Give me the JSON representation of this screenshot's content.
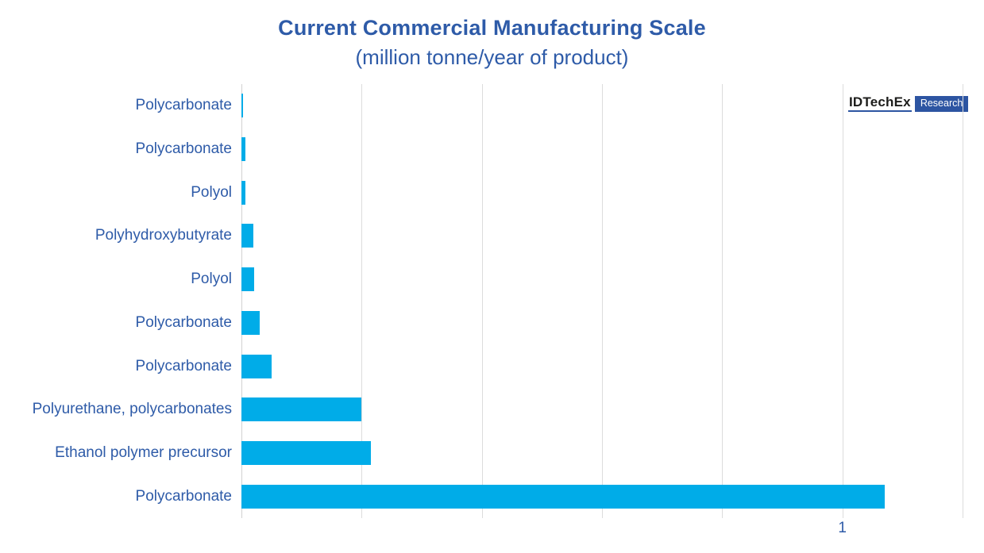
{
  "header": {
    "title": "Current Commercial Manufacturing Scale",
    "subtitle": "(million tonne/year of product)"
  },
  "logo": {
    "brand": "IDTechEx",
    "suffix": "Research"
  },
  "colors": {
    "bar": "#00ace8",
    "blue": "#2e5ba8",
    "grid": "#dcdcdc",
    "axis": "#d2d2d2",
    "logobox": "#2d55a2",
    "logotext": "#1d1d1b"
  },
  "x_axis": {
    "tick_label": "1",
    "tick_value": 1.0
  },
  "chart_data": {
    "type": "bar",
    "orientation": "horizontal",
    "title": "Current Commercial Manufacturing Scale",
    "subtitle": "(million tonne/year of product)",
    "categories": [
      "Polycarbonate",
      "Polycarbonate",
      "Polyol",
      "Polyhydroxybutyrate",
      "Polyol",
      "Polycarbonate",
      "Polycarbonate",
      "Polyurethane, polycarbonates",
      "Ethanol polymer precursor",
      "Polycarbonate"
    ],
    "values": [
      0.003,
      0.006,
      0.006,
      0.02,
      0.021,
      0.03,
      0.05,
      0.2,
      0.215,
      1.07
    ],
    "xlabel": "",
    "ylabel": "",
    "xlim": [
      0,
      1.2
    ],
    "x_ticks": [
      0,
      0.2,
      0.4,
      0.6,
      0.8,
      1.0,
      1.2
    ],
    "x_tick_labels": [
      "",
      "",
      "",
      "",
      "",
      "1",
      ""
    ],
    "grid": true,
    "legend": false,
    "bar_color": "#00ace8"
  }
}
